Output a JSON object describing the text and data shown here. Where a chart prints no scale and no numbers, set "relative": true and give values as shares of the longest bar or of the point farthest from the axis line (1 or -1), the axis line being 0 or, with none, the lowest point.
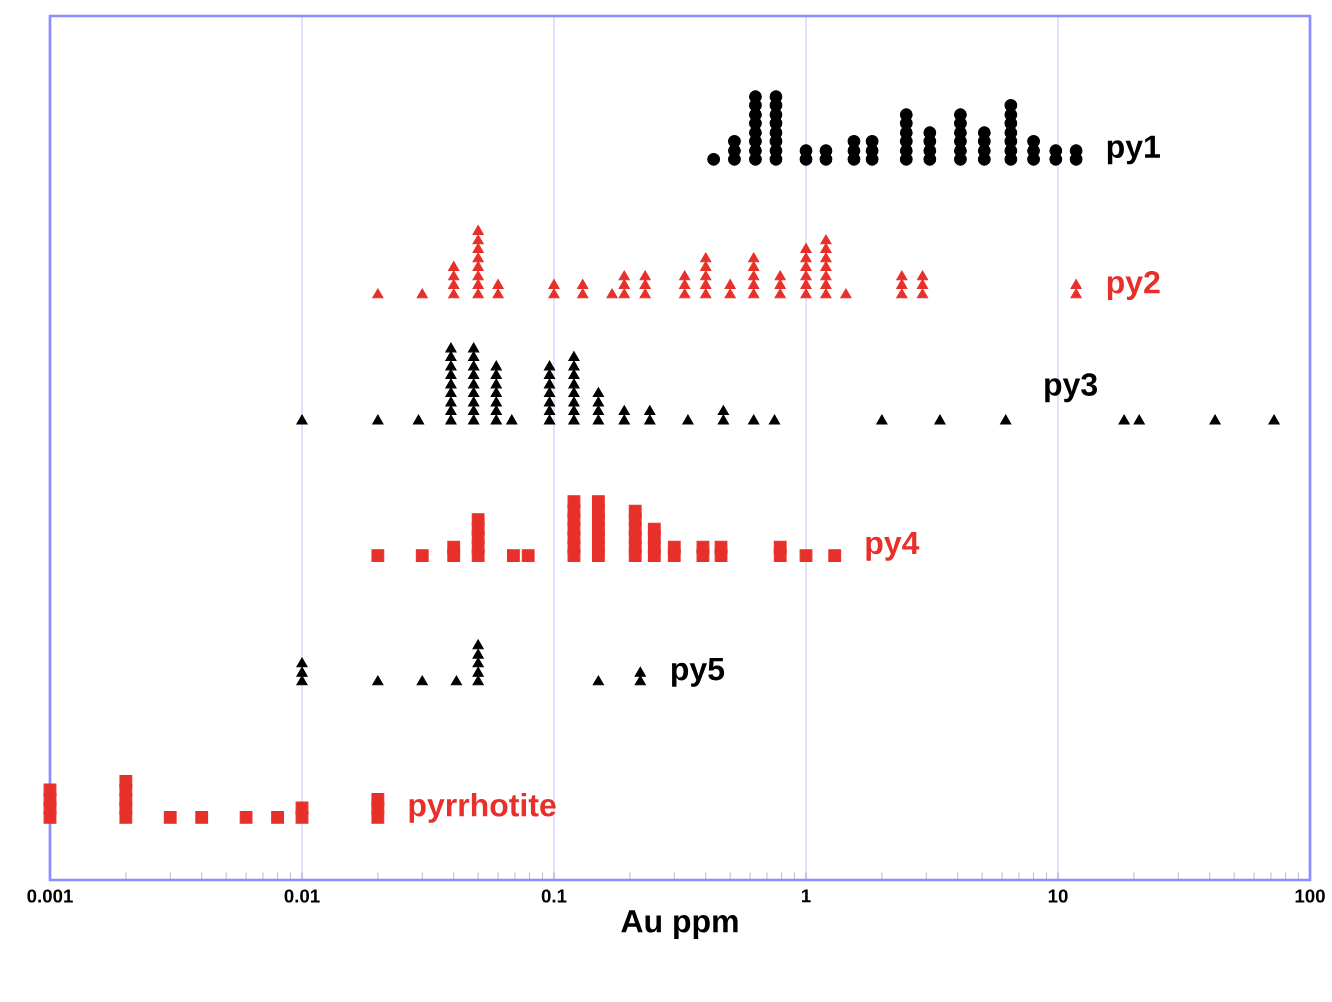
{
  "chart_data": {
    "type": "scatter",
    "relative": true,
    "xlabel": "Au ppm",
    "log": "x",
    "grid": "x",
    "xlim": [
      0.001,
      100
    ],
    "xticks": [
      0.001,
      0.01,
      0.1,
      1,
      10,
      100
    ],
    "series": [
      {
        "name": "py1",
        "color": "#000000",
        "marker": "circle",
        "x": [
          0.43,
          0.52,
          0.52,
          0.52,
          0.63,
          0.63,
          0.63,
          0.63,
          0.63,
          0.63,
          0.63,
          0.63,
          0.76,
          0.76,
          0.76,
          0.76,
          0.76,
          0.76,
          0.76,
          0.76,
          1.0,
          1.0,
          1.2,
          1.2,
          1.55,
          1.55,
          1.55,
          1.83,
          1.83,
          1.83,
          2.5,
          2.5,
          2.5,
          2.5,
          2.5,
          2.5,
          3.1,
          3.1,
          3.1,
          3.1,
          4.1,
          4.1,
          4.1,
          4.1,
          4.1,
          4.1,
          5.1,
          5.1,
          5.1,
          5.1,
          6.5,
          6.5,
          6.5,
          6.5,
          6.5,
          6.5,
          6.5,
          8.0,
          8.0,
          8.0,
          9.8,
          9.8,
          11.8,
          11.8
        ],
        "values": [
          0.92,
          0.92,
          0.931,
          0.943,
          0.92,
          0.931,
          0.943,
          0.954,
          0.966,
          0.977,
          0.989,
          1,
          0.92,
          0.931,
          0.943,
          0.954,
          0.966,
          0.977,
          0.989,
          1,
          0.92,
          0.931,
          0.92,
          0.931,
          0.92,
          0.931,
          0.943,
          0.92,
          0.931,
          0.943,
          0.92,
          0.931,
          0.943,
          0.954,
          0.966,
          0.977,
          0.92,
          0.931,
          0.943,
          0.954,
          0.92,
          0.931,
          0.943,
          0.954,
          0.966,
          0.977,
          0.92,
          0.931,
          0.943,
          0.954,
          0.92,
          0.931,
          0.943,
          0.954,
          0.966,
          0.977,
          0.989,
          0.92,
          0.931,
          0.943,
          0.92,
          0.931,
          0.92,
          0.931
        ]
      },
      {
        "name": "py2",
        "color": "#e8302a",
        "marker": "triangle",
        "x": [
          0.02,
          0.03,
          0.04,
          0.04,
          0.04,
          0.04,
          0.05,
          0.05,
          0.05,
          0.05,
          0.05,
          0.05,
          0.05,
          0.05,
          0.06,
          0.06,
          0.1,
          0.1,
          0.13,
          0.13,
          0.17,
          0.19,
          0.19,
          0.19,
          0.23,
          0.23,
          0.23,
          0.33,
          0.33,
          0.33,
          0.4,
          0.4,
          0.4,
          0.4,
          0.4,
          0.5,
          0.5,
          0.62,
          0.62,
          0.62,
          0.62,
          0.62,
          0.79,
          0.79,
          0.79,
          1.0,
          1.0,
          1.0,
          1.0,
          1.0,
          1.0,
          1.2,
          1.2,
          1.2,
          1.2,
          1.2,
          1.2,
          1.2,
          1.44,
          2.4,
          2.4,
          2.4,
          2.9,
          2.9,
          2.9,
          11.8,
          11.8
        ],
        "values": [
          0.747,
          0.747,
          0.747,
          0.759,
          0.77,
          0.782,
          0.747,
          0.759,
          0.77,
          0.782,
          0.793,
          0.805,
          0.816,
          0.828,
          0.747,
          0.759,
          0.747,
          0.759,
          0.747,
          0.759,
          0.747,
          0.747,
          0.759,
          0.77,
          0.747,
          0.759,
          0.77,
          0.747,
          0.759,
          0.77,
          0.747,
          0.759,
          0.77,
          0.782,
          0.793,
          0.747,
          0.759,
          0.747,
          0.759,
          0.77,
          0.782,
          0.793,
          0.747,
          0.759,
          0.77,
          0.747,
          0.759,
          0.77,
          0.782,
          0.793,
          0.805,
          0.747,
          0.759,
          0.77,
          0.782,
          0.793,
          0.805,
          0.816,
          0.747,
          0.747,
          0.759,
          0.77,
          0.747,
          0.759,
          0.77,
          0.747,
          0.759
        ]
      },
      {
        "name": "py3",
        "color": "#000000",
        "marker": "triangle",
        "x": [
          0.01,
          0.02,
          0.029,
          0.039,
          0.039,
          0.039,
          0.039,
          0.039,
          0.039,
          0.039,
          0.039,
          0.039,
          0.048,
          0.048,
          0.048,
          0.048,
          0.048,
          0.048,
          0.048,
          0.048,
          0.048,
          0.059,
          0.059,
          0.059,
          0.059,
          0.059,
          0.059,
          0.059,
          0.068,
          0.096,
          0.096,
          0.096,
          0.096,
          0.096,
          0.096,
          0.096,
          0.12,
          0.12,
          0.12,
          0.12,
          0.12,
          0.12,
          0.12,
          0.12,
          0.15,
          0.15,
          0.15,
          0.15,
          0.19,
          0.19,
          0.24,
          0.24,
          0.34,
          0.47,
          0.47,
          0.62,
          0.75,
          2.0,
          3.4,
          6.2,
          18.3,
          21,
          42,
          72
        ],
        "values": [
          0.586,
          0.586,
          0.586,
          0.586,
          0.598,
          0.609,
          0.621,
          0.632,
          0.644,
          0.655,
          0.667,
          0.678,
          0.586,
          0.598,
          0.609,
          0.621,
          0.632,
          0.644,
          0.655,
          0.667,
          0.678,
          0.586,
          0.598,
          0.609,
          0.621,
          0.632,
          0.644,
          0.655,
          0.586,
          0.586,
          0.598,
          0.609,
          0.621,
          0.632,
          0.644,
          0.655,
          0.586,
          0.598,
          0.609,
          0.621,
          0.632,
          0.644,
          0.655,
          0.667,
          0.586,
          0.598,
          0.609,
          0.621,
          0.586,
          0.598,
          0.586,
          0.598,
          0.586,
          0.586,
          0.598,
          0.586,
          0.586,
          0.586,
          0.586,
          0.586,
          0.586,
          0.586,
          0.586,
          0.586
        ]
      },
      {
        "name": "py4",
        "color": "#e8302a",
        "marker": "square",
        "x": [
          0.02,
          0.03,
          0.04,
          0.04,
          0.05,
          0.05,
          0.05,
          0.05,
          0.05,
          0.069,
          0.079,
          0.12,
          0.12,
          0.12,
          0.12,
          0.12,
          0.12,
          0.12,
          0.15,
          0.15,
          0.15,
          0.15,
          0.15,
          0.15,
          0.15,
          0.21,
          0.21,
          0.21,
          0.21,
          0.21,
          0.21,
          0.25,
          0.25,
          0.25,
          0.25,
          0.3,
          0.3,
          0.39,
          0.39,
          0.46,
          0.46,
          0.79,
          0.79,
          1.0,
          1.3
        ],
        "values": [
          0.414,
          0.414,
          0.414,
          0.425,
          0.414,
          0.425,
          0.437,
          0.448,
          0.46,
          0.414,
          0.414,
          0.414,
          0.425,
          0.437,
          0.448,
          0.46,
          0.471,
          0.483,
          0.414,
          0.425,
          0.437,
          0.448,
          0.46,
          0.471,
          0.483,
          0.414,
          0.425,
          0.437,
          0.448,
          0.46,
          0.471,
          0.414,
          0.425,
          0.437,
          0.448,
          0.414,
          0.425,
          0.414,
          0.425,
          0.414,
          0.425,
          0.414,
          0.425,
          0.414,
          0.414
        ]
      },
      {
        "name": "py5",
        "color": "#000000",
        "marker": "triangle",
        "x": [
          0.01,
          0.01,
          0.01,
          0.02,
          0.03,
          0.041,
          0.05,
          0.05,
          0.05,
          0.05,
          0.05,
          0.15,
          0.22,
          0.22
        ],
        "values": [
          0.253,
          0.264,
          0.276,
          0.253,
          0.253,
          0.253,
          0.253,
          0.264,
          0.276,
          0.287,
          0.299,
          0.253,
          0.253,
          0.264
        ]
      },
      {
        "name": "pyrrhotite",
        "color": "#e8302a",
        "marker": "square",
        "x": [
          0.001,
          0.001,
          0.001,
          0.001,
          0.002,
          0.002,
          0.002,
          0.002,
          0.002,
          0.003,
          0.004,
          0.006,
          0.008,
          0.01,
          0.01,
          0.02,
          0.02,
          0.02
        ],
        "values": [
          0.08,
          0.092,
          0.103,
          0.115,
          0.08,
          0.092,
          0.103,
          0.115,
          0.126,
          0.08,
          0.08,
          0.08,
          0.08,
          0.08,
          0.092,
          0.08,
          0.092,
          0.103
        ]
      }
    ]
  }
}
